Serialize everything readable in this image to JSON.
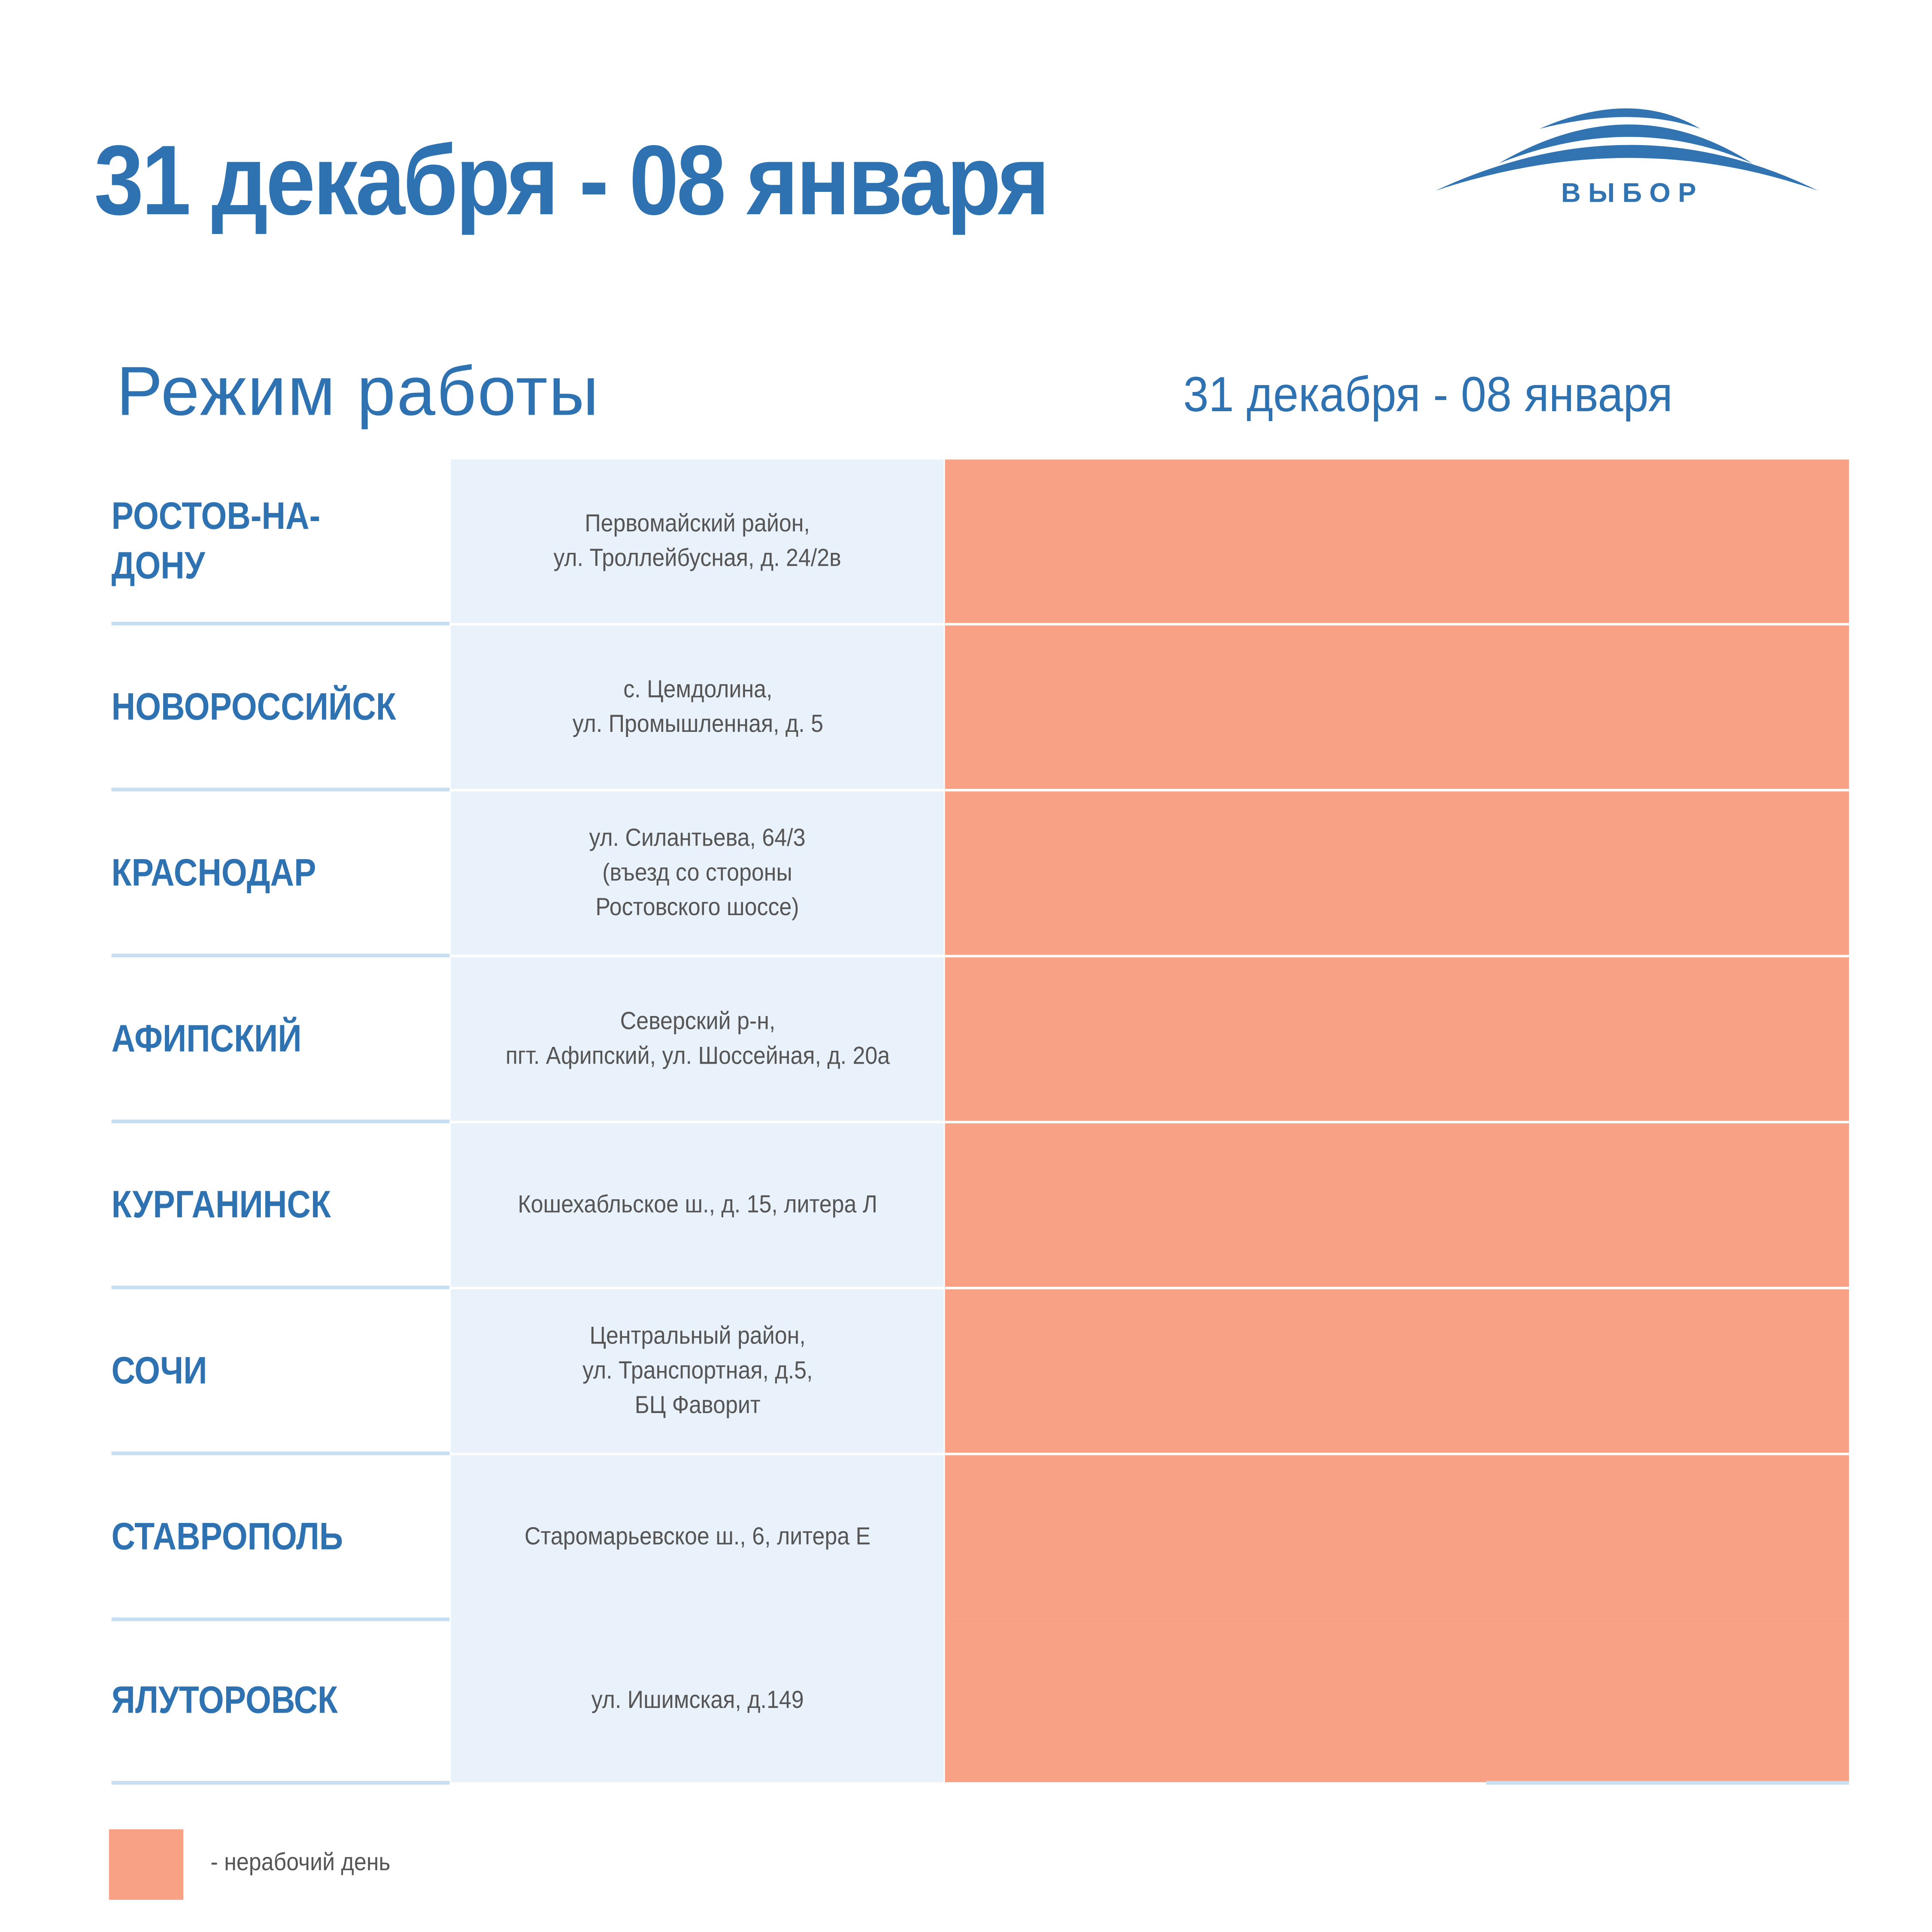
{
  "header": {
    "title": "31 декабря - 08 января",
    "logo_text": "ВЫБОР"
  },
  "table": {
    "subtitle": "Режим работы",
    "column_heading": "31 декабря - 08 января",
    "rows": [
      {
        "city": "РОСТОВ-НА-\nДОНУ",
        "address": "Первомайский район,\nул. Троллейбусная, д. 24/2в",
        "status": "non-working"
      },
      {
        "city": "НОВОРОССИЙСК",
        "address": "с. Цемдолина,\nул. Промышленная, д. 5",
        "status": "non-working"
      },
      {
        "city": "КРАСНОДАР",
        "address": "ул. Силантьева, 64/3\n(въезд со стороны\nРостовского шоссе)",
        "status": "non-working"
      },
      {
        "city": "АФИПСКИЙ",
        "address": "Северский р-н,\nпгт. Афипский, ул. Шоссейная, д. 20а",
        "status": "non-working"
      },
      {
        "city": "КУРГАНИНСК",
        "address": "Кошехабльское ш., д. 15, литера Л",
        "status": "non-working"
      },
      {
        "city": "СОЧИ",
        "address": "Центральный район,\nул. Транспортная, д.5,\nБЦ Фаворит",
        "status": "non-working"
      },
      {
        "city": "СТАВРОПОЛЬ",
        "address": "Старомарьевское ш., 6, литера Е",
        "status": "non-working"
      },
      {
        "city": "ЯЛУТОРОВСК",
        "address": "ул. Ишимская, д.149",
        "status": "non-working"
      }
    ]
  },
  "legend": {
    "label": "- нерабочий день"
  },
  "colors": {
    "brand": "#2f72b2",
    "non_working": "#f9a184",
    "address_bg": "#e9f1fa"
  }
}
